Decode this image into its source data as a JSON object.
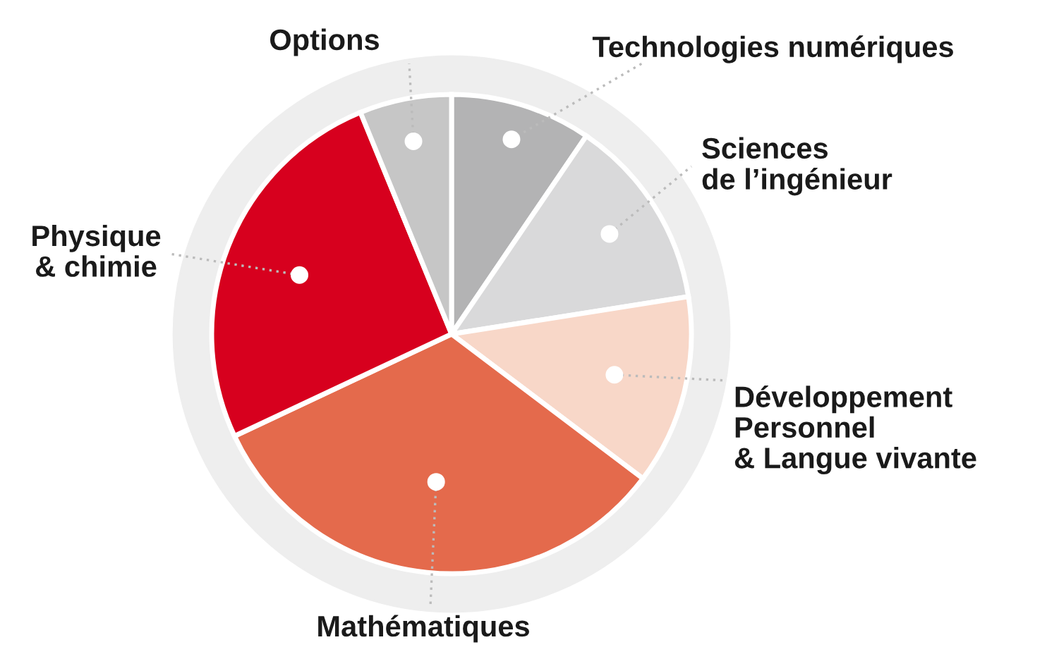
{
  "chart_data": {
    "type": "pie",
    "categories": [
      "Technologies numériques",
      "Sciences\nde l’ingénieur",
      "Développement\nPersonnel\n& Langue vivante",
      "Mathématiques",
      "Physique\n& chimie",
      "Options"
    ],
    "values": [
      9.5,
      13,
      12.8,
      32.7,
      25.8,
      6.2
    ],
    "colors": [
      "#b3b3b4",
      "#d9d9da",
      "#f8d7c8",
      "#e46a4c",
      "#d7001e",
      "#c6c6c6"
    ],
    "legend": false
  }
}
